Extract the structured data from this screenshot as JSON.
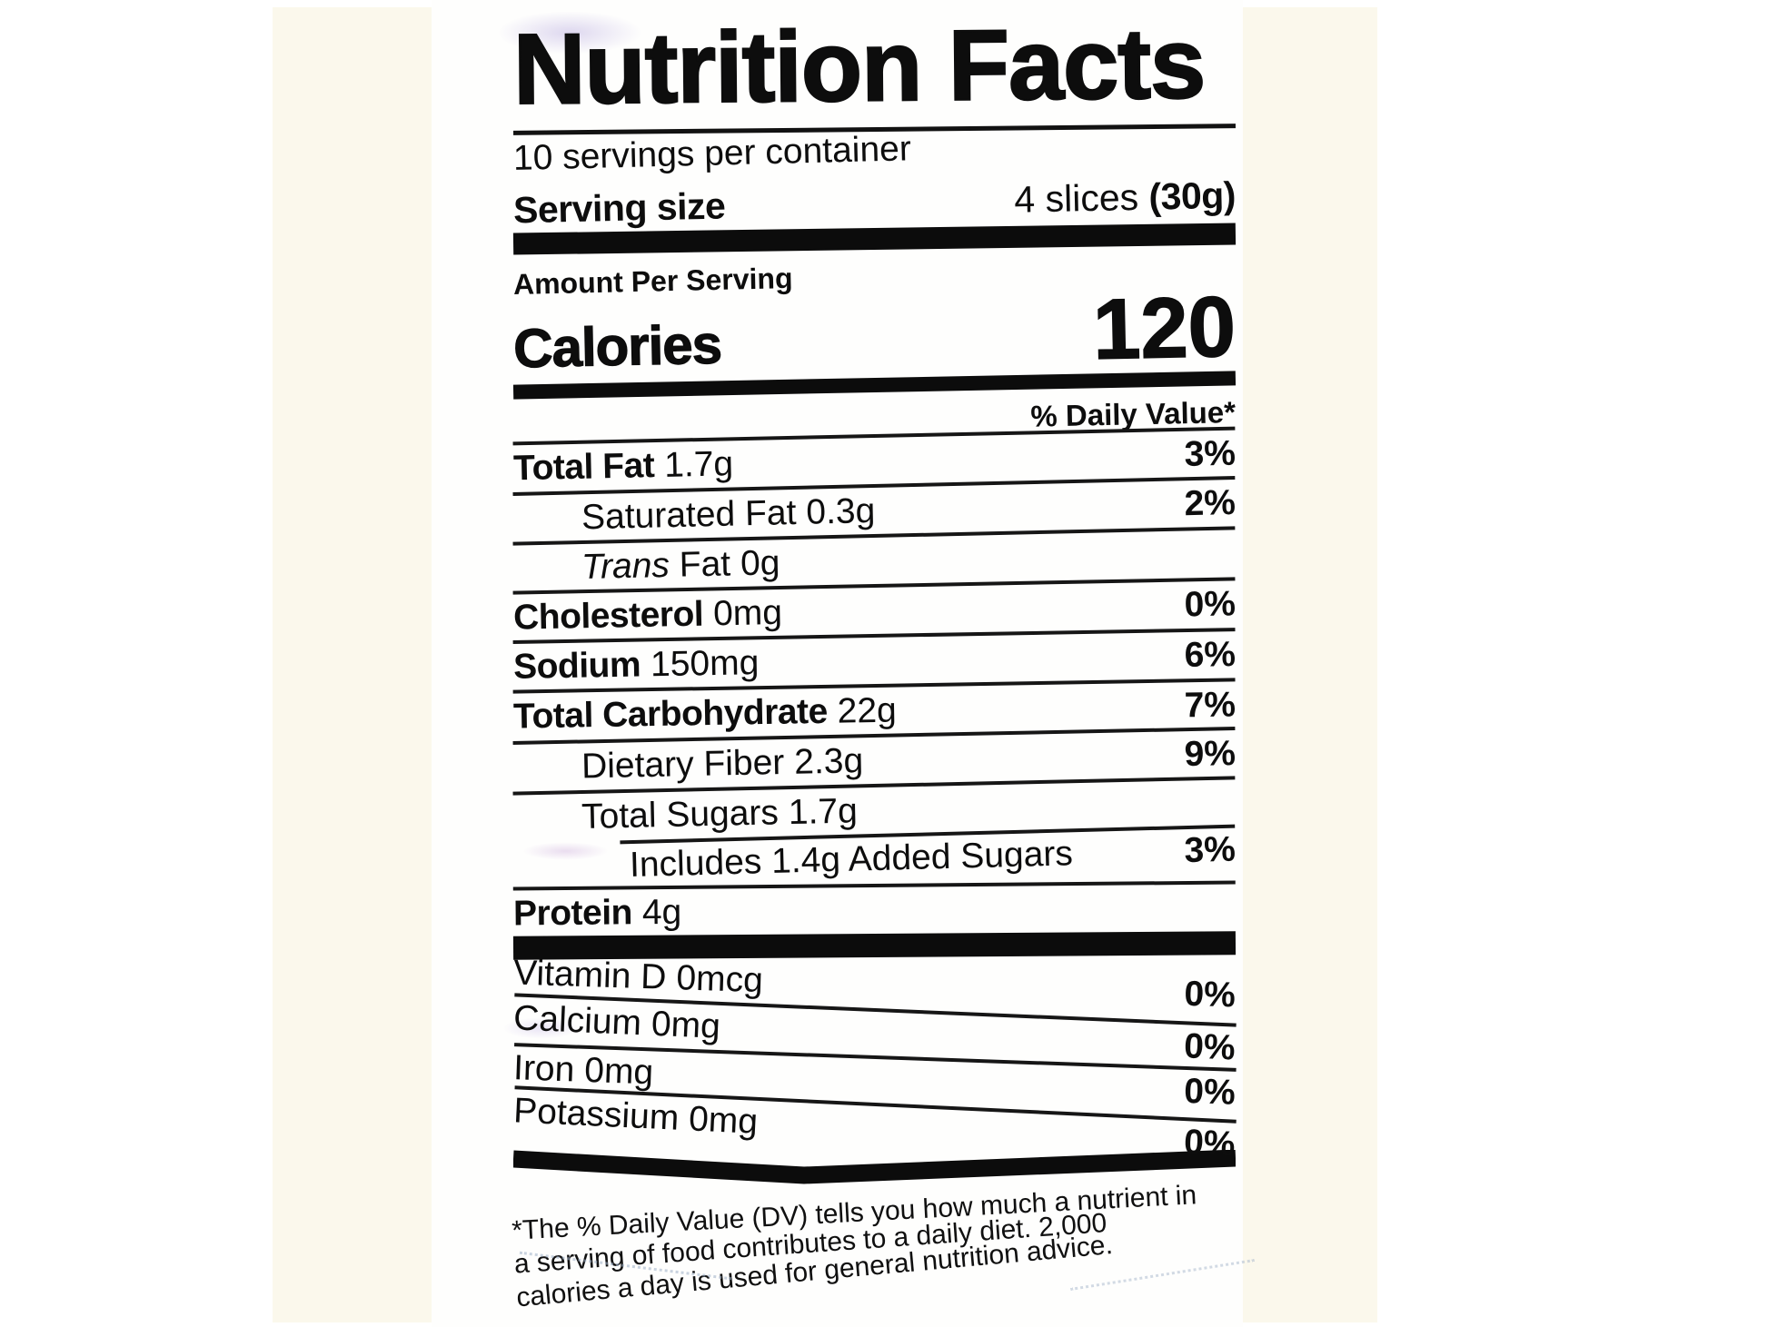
{
  "colors": {
    "ink": "#0d0d0d",
    "paper": "#fefefd",
    "photo_background": "#fbf8ec",
    "page_background": "#ffffff"
  },
  "label": {
    "title": "Nutrition Facts",
    "servings_per_container": "10 servings per container",
    "serving_size": {
      "label": "Serving size",
      "value_regular": "4 slices ",
      "value_bold": "(30g)"
    },
    "amount_per_serving": "Amount Per Serving",
    "calories": {
      "label": "Calories",
      "value": "120"
    },
    "daily_value_header": "% Daily Value*",
    "rows": [
      {
        "name": "Total Fat",
        "amount": "1.7g",
        "dv": "3%",
        "bold": true,
        "indent": 0
      },
      {
        "name": "Saturated Fat",
        "amount": "0.3g",
        "dv": "2%",
        "bold": false,
        "indent": 1
      },
      {
        "name": "Trans Fat",
        "amount": "0g",
        "dv": "",
        "bold": false,
        "indent": 1,
        "italic_first": true
      },
      {
        "name": "Cholesterol",
        "amount": "0mg",
        "dv": "0%",
        "bold": true,
        "indent": 0
      },
      {
        "name": "Sodium",
        "amount": "150mg",
        "dv": "6%",
        "bold": true,
        "indent": 0
      },
      {
        "name": "Total Carbohydrate",
        "amount": "22g",
        "dv": "7%",
        "bold": true,
        "indent": 0
      },
      {
        "name": "Dietary Fiber",
        "amount": "2.3g",
        "dv": "9%",
        "bold": false,
        "indent": 1
      },
      {
        "name": "Total Sugars",
        "amount": "1.7g",
        "dv": "",
        "bold": false,
        "indent": 1
      },
      {
        "name": "Includes 1.4g Added Sugars",
        "amount": "",
        "dv": "3%",
        "bold": false,
        "indent": 2,
        "topline": "indent"
      },
      {
        "name": "Protein",
        "amount": "4g",
        "dv": "",
        "bold": true,
        "indent": 0
      }
    ],
    "vitamins": [
      {
        "name": "Vitamin D",
        "amount": "0mcg",
        "dv": "0%"
      },
      {
        "name": "Calcium",
        "amount": "0mg",
        "dv": "0%"
      },
      {
        "name": "Iron",
        "amount": "0mg",
        "dv": "0%"
      },
      {
        "name": "Potassium",
        "amount": "0mg",
        "dv": "0%"
      }
    ],
    "footnote_lines": [
      "*The % Daily Value (DV) tells you how much a nutrient in",
      "a serving of food contributes to a daily diet. 2,000",
      "calories a day is used for general nutrition advice."
    ]
  }
}
